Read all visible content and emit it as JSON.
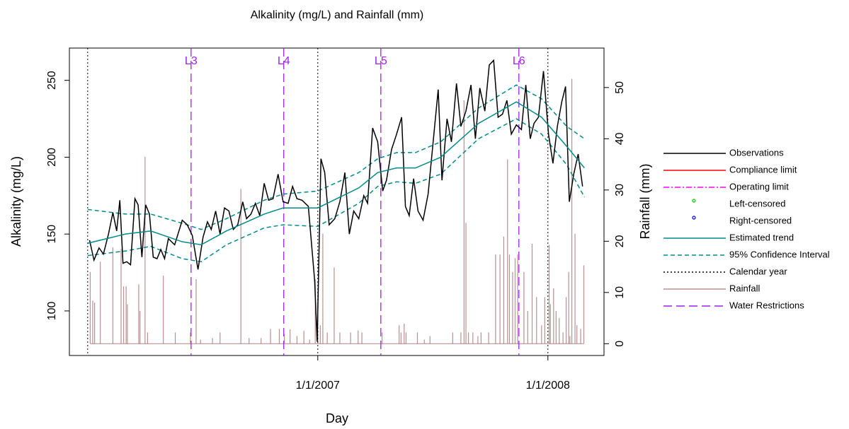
{
  "chart_data": {
    "type": "line",
    "title": "Alkalinity (mg/L) and Rainfall (mm)",
    "x_label": "Day",
    "y_label": "Alkalinity (mg/L)",
    "y2_label": "Rainfall (mm)",
    "xlim": [
      -29,
      819
    ],
    "xticks": [
      {
        "value": 365,
        "label": "1/1/2007"
      },
      {
        "value": 730,
        "label": "1/1/2008"
      }
    ],
    "ylim": [
      71,
      271
    ],
    "yticks": [
      100,
      150,
      200,
      250
    ],
    "y2lim": [
      -2.3,
      57.7
    ],
    "y2ticks": [
      0,
      10,
      20,
      30,
      40,
      50
    ],
    "series": [
      {
        "name": "Observations",
        "color": "#000000",
        "style": "line",
        "x": [
          3,
          10,
          18,
          25,
          33,
          40,
          46,
          51,
          56,
          62,
          68,
          75,
          80,
          86,
          92,
          98,
          104,
          110,
          116,
          122,
          128,
          138,
          150,
          158,
          166,
          175,
          183,
          190,
          196,
          203,
          210,
          217,
          224,
          231,
          238,
          246,
          252,
          259,
          266,
          273,
          280,
          287,
          294,
          302,
          310,
          318,
          325,
          332,
          340,
          350,
          360,
          364,
          370,
          376,
          383,
          392,
          400,
          408,
          415,
          422,
          430,
          438,
          444,
          452,
          460,
          468,
          474,
          482,
          490,
          498,
          504,
          510,
          517,
          524,
          532,
          540,
          548,
          556,
          562,
          570,
          577,
          585,
          592,
          600,
          608,
          615,
          622,
          630,
          637,
          644,
          651,
          658,
          665,
          672,
          680,
          688,
          695,
          702,
          708,
          715,
          723,
          731,
          738,
          745,
          752,
          758,
          764,
          771,
          778,
          785
        ],
        "values": [
          146,
          133,
          141,
          137,
          150,
          164,
          152,
          172,
          131,
          132,
          130,
          173,
          169,
          135,
          169,
          163,
          135,
          134,
          140,
          134,
          147,
          143,
          159,
          156,
          149,
          127,
          148,
          158,
          153,
          165,
          150,
          167,
          165,
          153,
          156,
          171,
          160,
          163,
          170,
          162,
          183,
          172,
          173,
          189,
          171,
          170,
          181,
          173,
          172,
          168,
          120,
          80,
          199,
          190,
          156,
          160,
          171,
          190,
          150,
          165,
          160,
          175,
          170,
          219,
          210,
          178,
          185,
          205,
          215,
          226,
          168,
          162,
          186,
          165,
          159,
          176,
          210,
          244,
          185,
          225,
          210,
          248,
          220,
          230,
          247,
          212,
          245,
          230,
          260,
          263,
          226,
          228,
          237,
          215,
          221,
          218,
          247,
          212,
          222,
          226,
          256,
          215,
          196,
          220,
          236,
          246,
          171,
          189,
          202,
          181
        ]
      },
      {
        "name": "Compliance limit",
        "color": "#ff0000",
        "style": "line"
      },
      {
        "name": "Operating limit",
        "color": "#ff00ff",
        "style": "dashdot"
      },
      {
        "name": "Left-censored",
        "color": "#00cc00",
        "style": "point"
      },
      {
        "name": "Right-censored",
        "color": "#0000ff",
        "style": "point"
      },
      {
        "name": "Estimated trend",
        "color": "#008b8b",
        "style": "line",
        "x": [
          0,
          60,
          100,
          150,
          180,
          220,
          280,
          310,
          365,
          430,
          460,
          490,
          520,
          560,
          620,
          680,
          720,
          760,
          788
        ],
        "values": [
          144,
          150,
          152,
          145,
          143,
          152,
          163,
          167,
          167,
          180,
          190,
          193,
          193,
          200,
          222,
          236,
          226,
          207,
          193
        ]
      },
      {
        "name": "95% Confidence Interval",
        "color": "#008b8b",
        "style": "band",
        "x": [
          0,
          60,
          100,
          150,
          180,
          220,
          280,
          310,
          365,
          430,
          460,
          490,
          520,
          560,
          620,
          680,
          720,
          760,
          788
        ],
        "upper": [
          166,
          163,
          163,
          157,
          153,
          160,
          172,
          176,
          178,
          190,
          199,
          203,
          203,
          210,
          232,
          247,
          238,
          220,
          212
        ],
        "lower": [
          136,
          139,
          142,
          134,
          132,
          143,
          154,
          156,
          155,
          170,
          181,
          184,
          183,
          189,
          212,
          225,
          215,
          195,
          174
        ]
      },
      {
        "name": "Calendar year",
        "color": "#000000",
        "style": "vline",
        "x": [
          0,
          365,
          730
        ]
      },
      {
        "name": "Rainfall",
        "color": "#bc8f8f",
        "style": "spike",
        "axis": "y2",
        "x": [
          4,
          8,
          11,
          20,
          40,
          53,
          57,
          61,
          63,
          81,
          83,
          91,
          95,
          120,
          139,
          163,
          172,
          179,
          198,
          210,
          243,
          256,
          275,
          290,
          304,
          312,
          321,
          332,
          343,
          352,
          361,
          365,
          369,
          373,
          380,
          391,
          400,
          417,
          429,
          435,
          467,
          494,
          497,
          502,
          505,
          523,
          534,
          543,
          579,
          592,
          597,
          600,
          604,
          611,
          619,
          624,
          636,
          647,
          654,
          660,
          666,
          669,
          674,
          678,
          682,
          692,
          698,
          705,
          712,
          720,
          725,
          732,
          734,
          739,
          743,
          748,
          754,
          759,
          763,
          765,
          768,
          773,
          776,
          782,
          787
        ],
        "values": [
          14.0,
          8.4,
          8.0,
          16.0,
          18.8,
          18.5,
          11.2,
          11.2,
          7.7,
          11.6,
          6.4,
          36.5,
          2.2,
          13.3,
          2.2,
          2.2,
          12.6,
          0.8,
          1.1,
          2.2,
          30.2,
          1.1,
          1.1,
          2.9,
          2.9,
          1.9,
          2.8,
          1.5,
          2.5,
          0.8,
          12.6,
          7.7,
          3.6,
          21.5,
          2.2,
          14.9,
          2.2,
          2.2,
          2.6,
          2.2,
          2.2,
          3.6,
          2.2,
          3.9,
          2.2,
          2.2,
          0.8,
          1.5,
          2.2,
          2.2,
          47.5,
          23.6,
          2.2,
          2.2,
          1.5,
          2.2,
          2.2,
          17.4,
          17.4,
          20.9,
          36.0,
          17.4,
          14.0,
          16.7,
          17.4,
          14.0,
          6.4,
          19.5,
          9.1,
          3.6,
          9.1,
          19.3,
          7.7,
          10.8,
          6.4,
          5.0,
          2.2,
          9.1,
          14.0,
          1.5,
          51.7,
          21.5,
          3.6,
          2.9,
          15.3
        ]
      },
      {
        "name": "Water Restrictions",
        "color": "#a020f0",
        "style": "vdash",
        "x": [
          164,
          311,
          465,
          684
        ],
        "labels": [
          "L3",
          "L4",
          "L5",
          "L6"
        ]
      }
    ]
  }
}
